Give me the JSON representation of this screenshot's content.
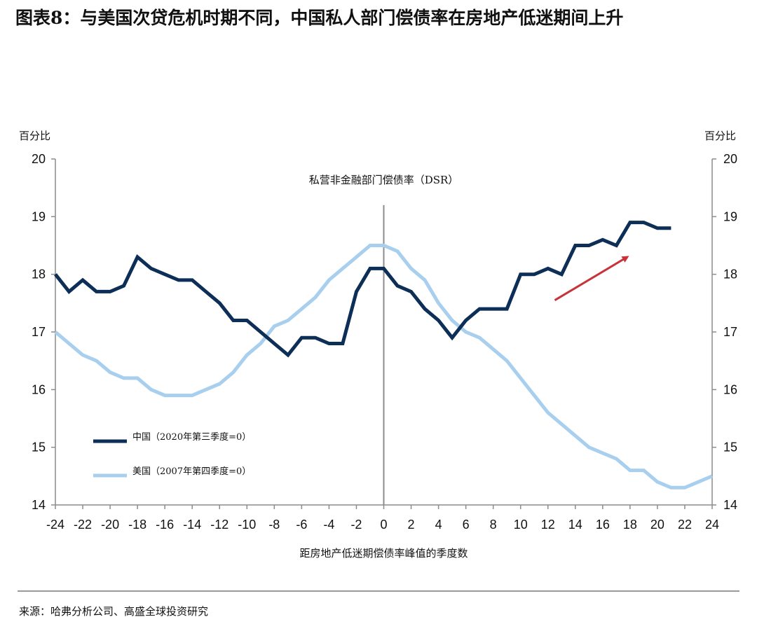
{
  "title": "图表8：与美国次贷危机时期不同，中国私人部门偿债率在房地产低迷期间上升",
  "source": "来源：哈弗分析公司、高盛全球投资研究",
  "colors": {
    "china": "#0d2f57",
    "us": "#a8cfee",
    "arrow": "#c8333a",
    "axis": "#8c8c8c",
    "grid": "#8c8c8c"
  },
  "chart_data": {
    "type": "line",
    "title": "私营非金融部门偿债率（DSR）",
    "xlabel": "距房地产低迷期偿债率峰值的季度数",
    "ylabel_left": "百分比",
    "ylabel_right": "百分比",
    "xlim": [
      -24,
      24
    ],
    "ylim": [
      14,
      20
    ],
    "xticks": [
      "-24",
      "-22",
      "-20",
      "-18",
      "-16",
      "-14",
      "-12",
      "-10",
      "-8",
      "-6",
      "-4",
      "-2",
      "0",
      "2",
      "4",
      "6",
      "8",
      "10",
      "12",
      "14",
      "16",
      "18",
      "20",
      "22",
      "24"
    ],
    "yticks": [
      "14",
      "15",
      "16",
      "17",
      "18",
      "19",
      "20"
    ],
    "vline_x": 0,
    "grid": false,
    "legend_position": "lower-left",
    "series": [
      {
        "name": "中国（2020年第三季度=0）",
        "color": "#0d2f57",
        "x": [
          -24,
          -23,
          -22,
          -21,
          -20,
          -19,
          -18,
          -17,
          -16,
          -15,
          -14,
          -13,
          -12,
          -11,
          -10,
          -9,
          -8,
          -7,
          -6,
          -5,
          -4,
          -3,
          -2,
          -1,
          0,
          1,
          2,
          3,
          4,
          5,
          6,
          7,
          8,
          9,
          10,
          11,
          12,
          13,
          14,
          15,
          16,
          17,
          18,
          19,
          20,
          21
        ],
        "values": [
          18.0,
          17.7,
          17.9,
          17.7,
          17.7,
          17.8,
          18.3,
          18.1,
          18.0,
          17.9,
          17.9,
          17.7,
          17.5,
          17.2,
          17.2,
          17.0,
          16.8,
          16.6,
          16.9,
          16.9,
          16.8,
          16.8,
          17.7,
          18.1,
          18.1,
          17.8,
          17.7,
          17.4,
          17.2,
          16.9,
          17.2,
          17.4,
          17.4,
          17.4,
          18.0,
          18.0,
          18.1,
          18.0,
          18.5,
          18.5,
          18.6,
          18.5,
          18.9,
          18.9,
          18.8,
          18.8
        ]
      },
      {
        "name": "美国（2007年第四季度=0）",
        "color": "#a8cfee",
        "x": [
          -24,
          -23,
          -22,
          -21,
          -20,
          -19,
          -18,
          -17,
          -16,
          -15,
          -14,
          -13,
          -12,
          -11,
          -10,
          -9,
          -8,
          -7,
          -6,
          -5,
          -4,
          -3,
          -2,
          -1,
          0,
          1,
          2,
          3,
          4,
          5,
          6,
          7,
          8,
          9,
          10,
          11,
          12,
          13,
          14,
          15,
          16,
          17,
          18,
          19,
          20,
          21,
          22,
          23,
          24
        ],
        "values": [
          17.0,
          16.8,
          16.6,
          16.5,
          16.3,
          16.2,
          16.2,
          16.0,
          15.9,
          15.9,
          15.9,
          16.0,
          16.1,
          16.3,
          16.6,
          16.8,
          17.1,
          17.2,
          17.4,
          17.6,
          17.9,
          18.1,
          18.3,
          18.5,
          18.5,
          18.4,
          18.1,
          17.9,
          17.5,
          17.2,
          17.0,
          16.9,
          16.7,
          16.5,
          16.2,
          15.9,
          15.6,
          15.4,
          15.2,
          15.0,
          14.9,
          14.8,
          14.6,
          14.6,
          14.4,
          14.3,
          14.3,
          14.4,
          14.5
        ]
      }
    ],
    "annotations": [
      {
        "type": "arrow",
        "from": [
          12.5,
          17.55
        ],
        "to": [
          17.8,
          18.3
        ],
        "color": "#c8333a"
      }
    ]
  }
}
